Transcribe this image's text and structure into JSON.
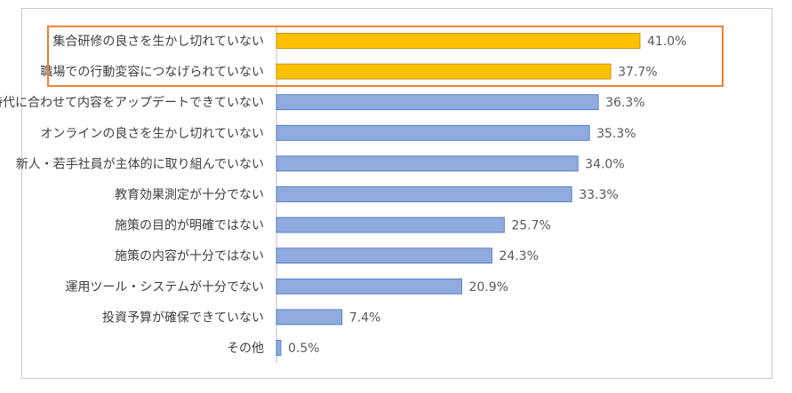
{
  "chart_data": {
    "type": "bar",
    "orientation": "horizontal",
    "categories": [
      "集合研修の良さを生かし切れていない",
      "職場での行動変容につなげられていない",
      "時代に合わせて内容をアップデートできていない",
      "オンラインの良さを生かし切れていない",
      "新人・若手社員が主体的に取り組んでいない",
      "教育効果測定が十分でない",
      "施策の目的が明確ではない",
      "施策の内容が十分ではない",
      "運用ツール・システムが十分でない",
      "投資予算が確保できていない",
      "その他"
    ],
    "values": [
      41.0,
      37.7,
      36.3,
      35.3,
      34.0,
      33.3,
      25.7,
      24.3,
      20.9,
      7.4,
      0.5
    ],
    "value_labels": [
      "41.0%",
      "37.7%",
      "36.3%",
      "35.3%",
      "34.0%",
      "33.3%",
      "25.7%",
      "24.3%",
      "20.9%",
      "7.4%",
      "0.5%"
    ],
    "xlim": [
      0,
      45
    ],
    "highlighted_categories": [
      0,
      1
    ],
    "highlight_box_categories": [
      0,
      1
    ],
    "grid": false,
    "legend": "none",
    "colors": {
      "bar_default": "#8faadc",
      "bar_default_stroke": "#4472c4",
      "bar_highlight": "#ffc000",
      "bar_highlight_stroke": "#b8860b",
      "highlight_box": "#ed7d31",
      "axis": "#bfbfbf",
      "text": "#404040",
      "value_text": "#595959"
    }
  }
}
